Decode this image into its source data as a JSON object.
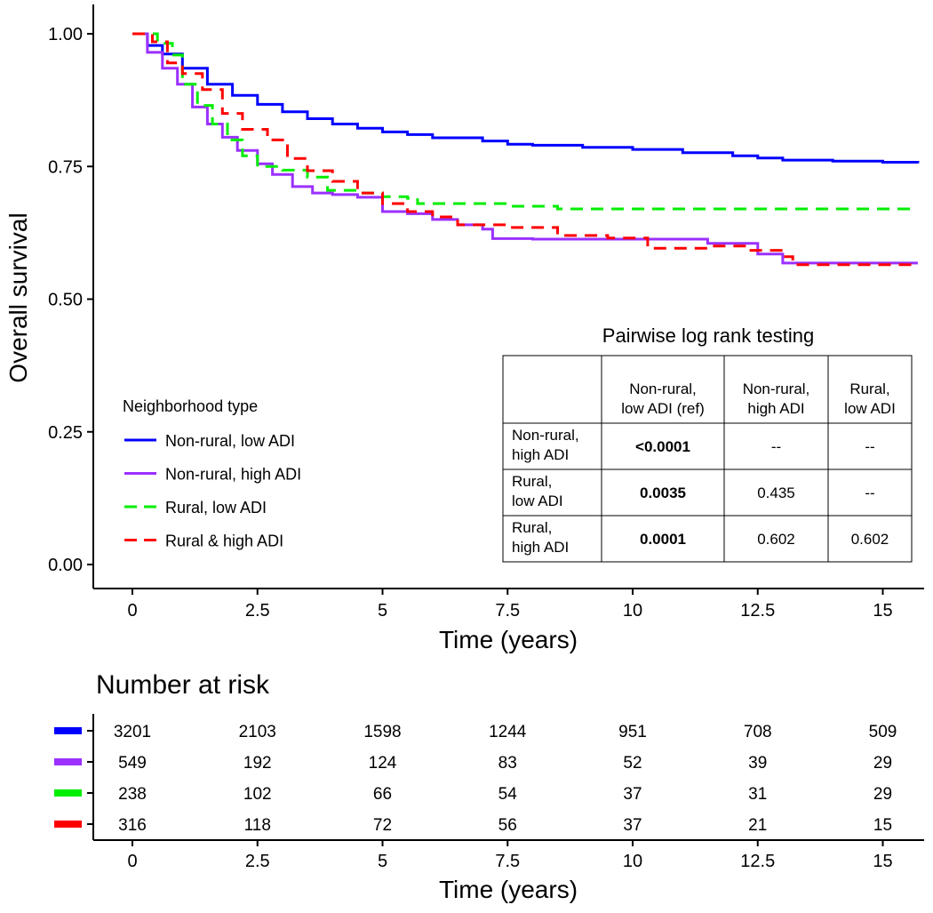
{
  "chart_data": {
    "type": "line",
    "subtype": "kaplan-meier",
    "xlabel": "Time (years)",
    "ylabel": "Overall survival",
    "xlim": [
      -0.75,
      15.7
    ],
    "ylim": [
      -0.05,
      1.05
    ],
    "x_ticks": [
      "0",
      "2.5",
      "5",
      "7.5",
      "10",
      "12.5",
      "15"
    ],
    "x_tick_values": [
      0,
      2.5,
      5,
      7.5,
      10,
      12.5,
      15
    ],
    "y_ticks": [
      "0.00",
      "0.25",
      "0.50",
      "0.75",
      "1.00"
    ],
    "y_tick_values": [
      0,
      0.25,
      0.5,
      0.75,
      1.0
    ],
    "grid": false,
    "legend": {
      "title": "Neighborhood type",
      "placement": "left-middle",
      "entries": [
        "Non-rural, low ADI",
        "Non-rural, high ADI",
        "Rural, low ADI",
        "Rural & high ADI"
      ]
    },
    "series": [
      {
        "name": "Non-rural, low ADI",
        "color": "#0000ff",
        "dash": "solid",
        "points": [
          [
            0,
            1.0
          ],
          [
            0.3,
            0.978
          ],
          [
            0.6,
            0.962
          ],
          [
            1.0,
            0.935
          ],
          [
            1.5,
            0.905
          ],
          [
            2.0,
            0.884
          ],
          [
            2.5,
            0.867
          ],
          [
            3.0,
            0.853
          ],
          [
            3.5,
            0.84
          ],
          [
            4.0,
            0.83
          ],
          [
            4.5,
            0.822
          ],
          [
            5.0,
            0.815
          ],
          [
            5.5,
            0.81
          ],
          [
            6.0,
            0.804
          ],
          [
            7.0,
            0.798
          ],
          [
            7.5,
            0.792
          ],
          [
            8.0,
            0.79
          ],
          [
            9.0,
            0.786
          ],
          [
            10.0,
            0.782
          ],
          [
            11.0,
            0.776
          ],
          [
            12.0,
            0.77
          ],
          [
            12.5,
            0.766
          ],
          [
            13.0,
            0.762
          ],
          [
            14.0,
            0.76
          ],
          [
            15.0,
            0.758
          ],
          [
            15.7,
            0.756
          ]
        ]
      },
      {
        "name": "Non-rural, high ADI",
        "color": "#9b30ff",
        "dash": "solid",
        "points": [
          [
            0,
            1.0
          ],
          [
            0.3,
            0.965
          ],
          [
            0.6,
            0.935
          ],
          [
            0.9,
            0.905
          ],
          [
            1.2,
            0.862
          ],
          [
            1.5,
            0.83
          ],
          [
            1.8,
            0.805
          ],
          [
            2.1,
            0.78
          ],
          [
            2.5,
            0.755
          ],
          [
            2.8,
            0.735
          ],
          [
            3.2,
            0.712
          ],
          [
            3.6,
            0.7
          ],
          [
            4.0,
            0.697
          ],
          [
            4.5,
            0.692
          ],
          [
            5.0,
            0.665
          ],
          [
            5.5,
            0.661
          ],
          [
            6.0,
            0.65
          ],
          [
            6.5,
            0.64
          ],
          [
            7.0,
            0.632
          ],
          [
            7.2,
            0.614
          ],
          [
            8.0,
            0.613
          ],
          [
            10.0,
            0.613
          ],
          [
            11.5,
            0.605
          ],
          [
            12.5,
            0.585
          ],
          [
            13.0,
            0.568
          ],
          [
            15.7,
            0.568
          ]
        ]
      },
      {
        "name": "Rural, low ADI",
        "color": "#00ee00",
        "dash": "dashed",
        "points": [
          [
            0,
            1.0
          ],
          [
            0.5,
            0.982
          ],
          [
            0.8,
            0.96
          ],
          [
            1.0,
            0.905
          ],
          [
            1.3,
            0.865
          ],
          [
            1.6,
            0.83
          ],
          [
            1.9,
            0.8
          ],
          [
            2.2,
            0.77
          ],
          [
            2.5,
            0.75
          ],
          [
            3.0,
            0.743
          ],
          [
            3.5,
            0.73
          ],
          [
            3.9,
            0.705
          ],
          [
            4.5,
            0.7
          ],
          [
            5.0,
            0.693
          ],
          [
            5.5,
            0.69
          ],
          [
            5.7,
            0.68
          ],
          [
            7.0,
            0.68
          ],
          [
            7.5,
            0.675
          ],
          [
            8.5,
            0.67
          ],
          [
            15.7,
            0.67
          ]
        ]
      },
      {
        "name": "Rural & high ADI",
        "color": "#ff0000",
        "dash": "dashed",
        "points": [
          [
            0,
            1.0
          ],
          [
            0.4,
            0.985
          ],
          [
            0.7,
            0.945
          ],
          [
            1.0,
            0.925
          ],
          [
            1.4,
            0.895
          ],
          [
            1.8,
            0.85
          ],
          [
            2.2,
            0.82
          ],
          [
            2.7,
            0.8
          ],
          [
            3.1,
            0.765
          ],
          [
            3.5,
            0.742
          ],
          [
            4.0,
            0.722
          ],
          [
            4.5,
            0.7
          ],
          [
            5.0,
            0.68
          ],
          [
            5.5,
            0.665
          ],
          [
            6.0,
            0.655
          ],
          [
            6.5,
            0.64
          ],
          [
            7.5,
            0.635
          ],
          [
            8.5,
            0.62
          ],
          [
            9.5,
            0.615
          ],
          [
            10.3,
            0.596
          ],
          [
            11.5,
            0.6
          ],
          [
            12.3,
            0.592
          ],
          [
            13.0,
            0.58
          ],
          [
            13.2,
            0.565
          ],
          [
            15.7,
            0.565
          ]
        ]
      }
    ]
  },
  "pairwise_table": {
    "title": "Pairwise log rank testing",
    "columns": [
      [
        "Non-rural,",
        "low ADI (ref)"
      ],
      [
        "Non-rural,",
        "high ADI"
      ],
      [
        "Rural,",
        "low ADI"
      ]
    ],
    "rows": [
      {
        "label": [
          "Non-rural,",
          "high ADI"
        ],
        "values": [
          "<0.0001",
          "--",
          "--"
        ],
        "bold": [
          true,
          false,
          false
        ]
      },
      {
        "label": [
          "Rural,",
          "low ADI"
        ],
        "values": [
          "0.0035",
          "0.435",
          "--"
        ],
        "bold": [
          true,
          false,
          false
        ]
      },
      {
        "label": [
          "Rural,",
          "high ADI"
        ],
        "values": [
          "0.0001",
          "0.602",
          "0.602"
        ],
        "bold": [
          true,
          false,
          false
        ]
      }
    ]
  },
  "risk_table": {
    "title": "Number at risk",
    "xlabel": "Time (years)",
    "times": [
      "0",
      "2.5",
      "5",
      "7.5",
      "10",
      "12.5",
      "15"
    ],
    "rows": [
      {
        "color": "#0000ff",
        "values": [
          "3201",
          "2103",
          "1598",
          "1244",
          "951",
          "708",
          "509"
        ]
      },
      {
        "color": "#9b30ff",
        "values": [
          "549",
          "192",
          "124",
          "83",
          "52",
          "39",
          "29"
        ]
      },
      {
        "color": "#00ee00",
        "values": [
          "238",
          "102",
          "66",
          "54",
          "37",
          "31",
          "29"
        ]
      },
      {
        "color": "#ff0000",
        "values": [
          "316",
          "118",
          "72",
          "56",
          "37",
          "21",
          "15"
        ]
      }
    ]
  }
}
